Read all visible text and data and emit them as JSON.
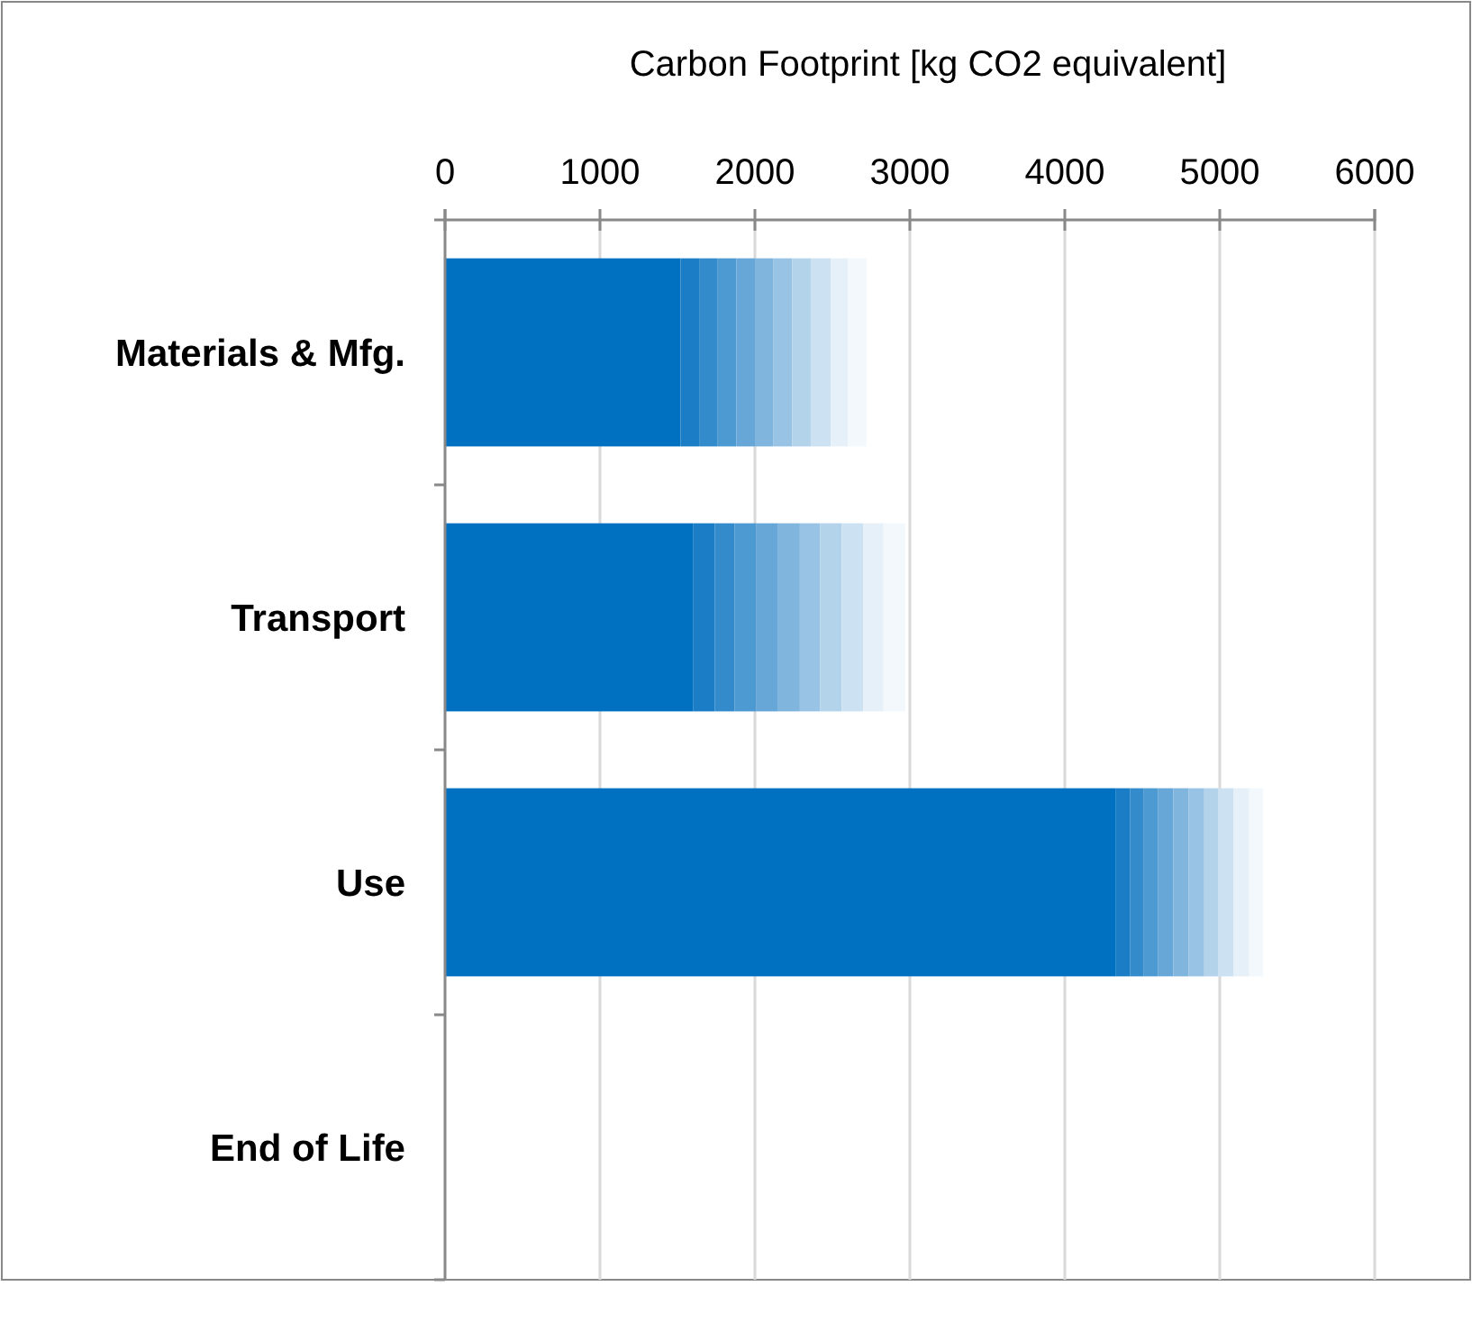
{
  "chart_data": {
    "type": "bar",
    "orientation": "horizontal",
    "stacked": true,
    "xlabel": "Carbon Footprint [kg CO2 equivalent]",
    "categories": [
      "Materials & Mfg.",
      "Transport",
      "Use",
      "End of Life"
    ],
    "xlim": [
      0,
      6000
    ],
    "xticks": [
      0,
      1000,
      2000,
      3000,
      4000,
      5000,
      6000
    ],
    "grid": "x",
    "series": [
      {
        "color": "#0070c0",
        "values": [
          1520,
          1600,
          4330,
          0
        ]
      },
      {
        "color": "#1a7dc5",
        "values": [
          120,
          140,
          90,
          0
        ]
      },
      {
        "color": "#338bcb",
        "values": [
          120,
          130,
          90,
          0
        ]
      },
      {
        "color": "#4d99d1",
        "values": [
          120,
          140,
          90,
          0
        ]
      },
      {
        "color": "#66a7d8",
        "values": [
          120,
          140,
          100,
          0
        ]
      },
      {
        "color": "#80b5de",
        "values": [
          120,
          140,
          100,
          0
        ]
      },
      {
        "color": "#99c3e5",
        "values": [
          120,
          130,
          100,
          0
        ]
      },
      {
        "color": "#b3d3eb",
        "values": [
          120,
          140,
          90,
          0
        ]
      },
      {
        "color": "#cce1f2",
        "values": [
          130,
          140,
          100,
          0
        ]
      },
      {
        "color": "#e6f0f8",
        "values": [
          110,
          130,
          100,
          0
        ]
      },
      {
        "color": "#f2f8fc",
        "values": [
          120,
          140,
          90,
          0
        ]
      }
    ]
  }
}
